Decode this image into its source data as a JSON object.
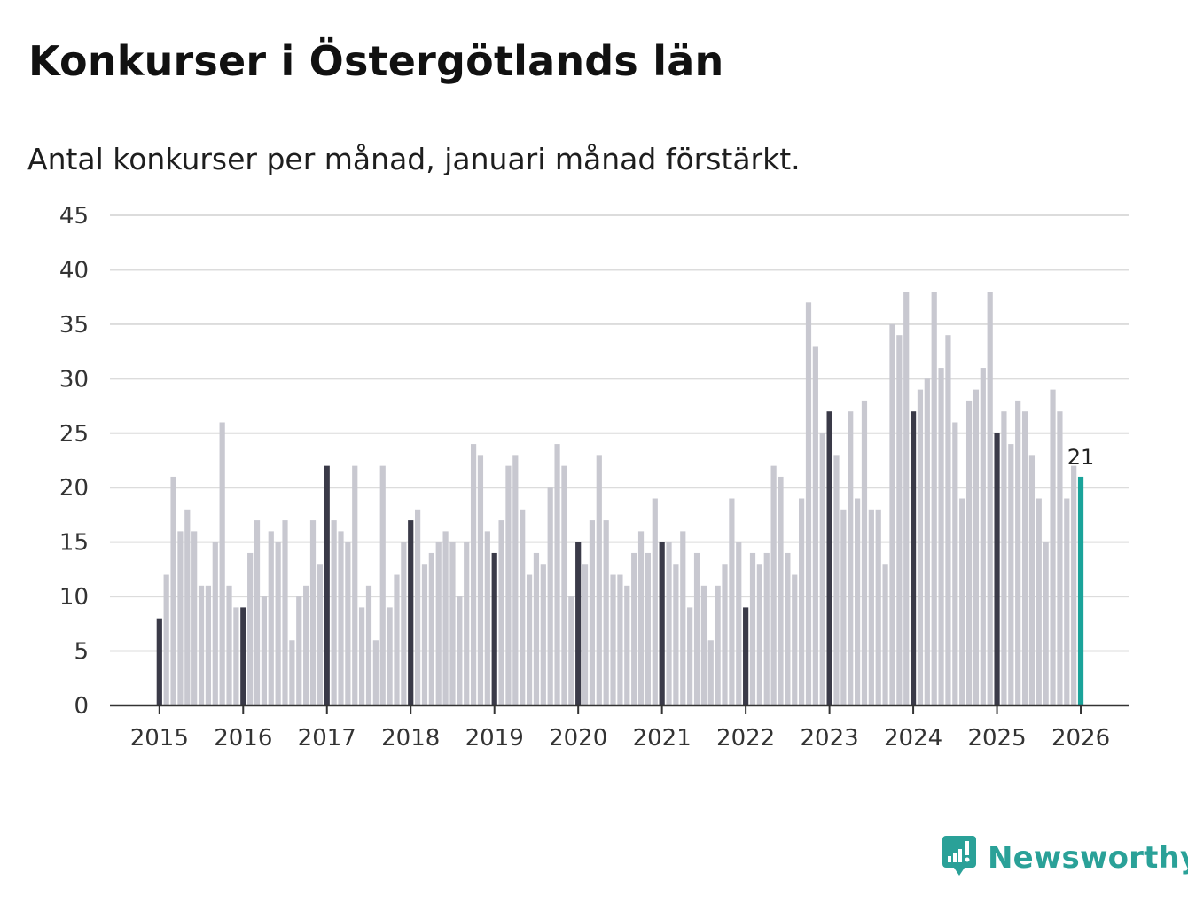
{
  "title": "Konkurser i Östergötlands län",
  "subtitle": "Antal konkurser per månad, januari månad förstärkt.",
  "brand": {
    "name": "Newsworthy",
    "icon": "newsworthy-logo-icon",
    "color": "#2aa198"
  },
  "colors": {
    "january": "#3a3a48",
    "other": "#c8c8d0",
    "latest": "#1aa39a",
    "grid": "#dcdcdc",
    "axis": "#333333"
  },
  "chart_data": {
    "type": "bar",
    "title": "Konkurser i Östergötlands län",
    "subtitle": "Antal konkurser per månad, januari månad förstärkt.",
    "xlabel": "",
    "ylabel": "",
    "ylim": [
      0,
      45
    ],
    "yticks": [
      0,
      5,
      10,
      15,
      20,
      25,
      30,
      35,
      40,
      45
    ],
    "xtick_labels": [
      "2015",
      "2016",
      "2017",
      "2018",
      "2019",
      "2020",
      "2021",
      "2022",
      "2023",
      "2024",
      "2025",
      "2026"
    ],
    "start": "2015-01",
    "highlight_label": "21",
    "values": [
      8,
      12,
      21,
      16,
      18,
      16,
      11,
      11,
      15,
      26,
      11,
      9,
      9,
      14,
      17,
      10,
      16,
      15,
      17,
      6,
      10,
      11,
      17,
      13,
      22,
      17,
      16,
      15,
      22,
      9,
      11,
      6,
      22,
      9,
      12,
      15,
      17,
      18,
      13,
      14,
      15,
      16,
      15,
      10,
      15,
      24,
      23,
      16,
      14,
      17,
      22,
      23,
      18,
      12,
      14,
      13,
      20,
      24,
      22,
      10,
      15,
      13,
      17,
      23,
      17,
      12,
      12,
      11,
      14,
      16,
      14,
      19,
      15,
      15,
      13,
      16,
      9,
      14,
      11,
      6,
      11,
      13,
      19,
      15,
      9,
      14,
      13,
      14,
      22,
      21,
      14,
      12,
      19,
      37,
      33,
      25,
      27,
      23,
      18,
      27,
      19,
      28,
      18,
      18,
      13,
      35,
      34,
      38,
      27,
      29,
      30,
      38,
      31,
      34,
      26,
      19,
      28,
      29,
      31,
      38,
      25,
      27,
      24,
      28,
      27,
      23,
      19,
      15,
      29,
      27,
      19,
      22,
      21
    ]
  }
}
